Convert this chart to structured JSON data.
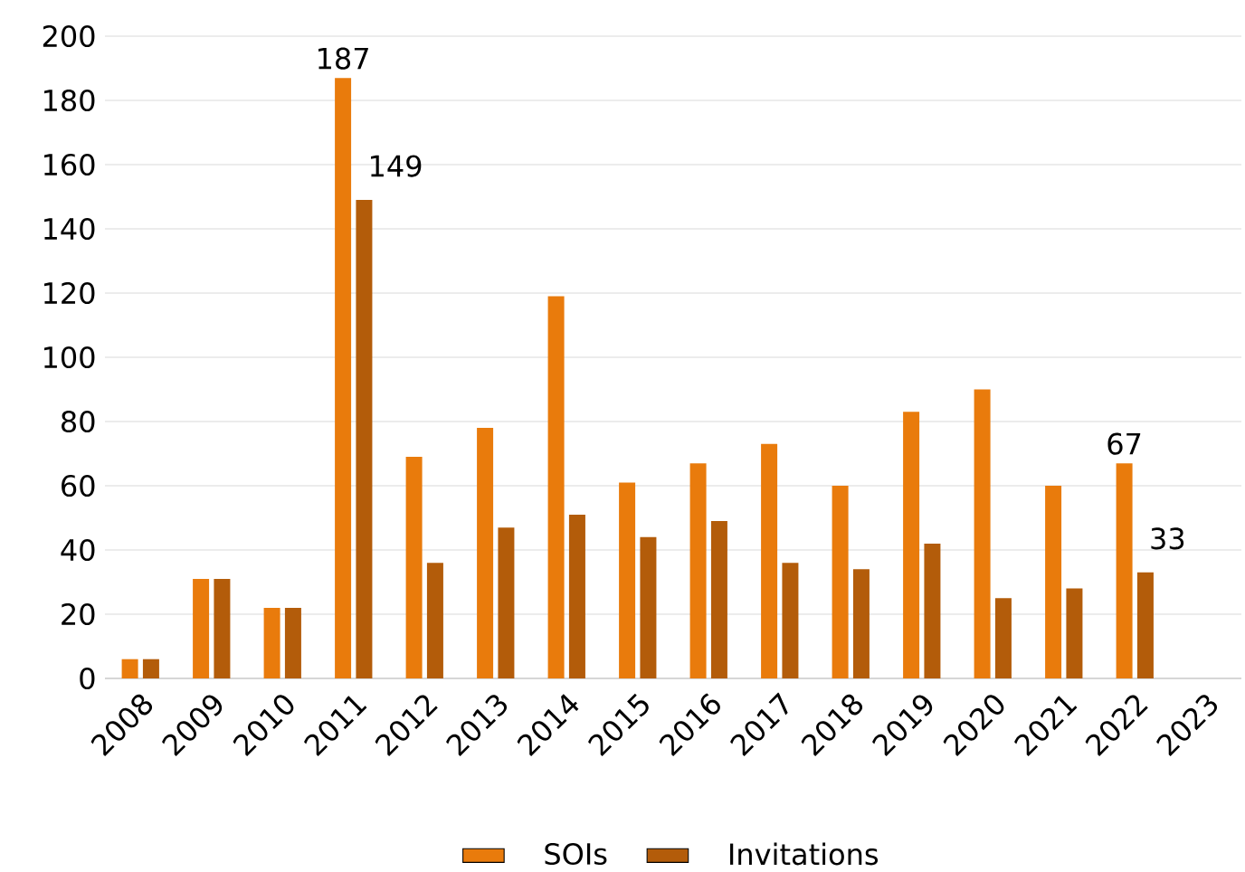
{
  "chart_data": {
    "type": "bar",
    "categories": [
      "2008",
      "2009",
      "2010",
      "2011",
      "2012",
      "2013",
      "2014",
      "2015",
      "2016",
      "2017",
      "2018",
      "2019",
      "2020",
      "2021",
      "2022",
      "2023"
    ],
    "series": [
      {
        "name": "SOIs",
        "color": "#e97b0c",
        "values": [
          6,
          31,
          22,
          187,
          69,
          78,
          119,
          61,
          67,
          73,
          60,
          83,
          90,
          60,
          67,
          null
        ],
        "value_labels": [
          null,
          null,
          null,
          "187",
          null,
          null,
          null,
          null,
          null,
          null,
          null,
          null,
          null,
          null,
          "67",
          null
        ]
      },
      {
        "name": "Invitations",
        "color": "#b35c0a",
        "values": [
          6,
          31,
          22,
          149,
          36,
          47,
          51,
          44,
          49,
          36,
          34,
          42,
          25,
          28,
          33,
          null
        ],
        "value_labels": [
          null,
          null,
          null,
          "149",
          null,
          null,
          null,
          null,
          null,
          null,
          null,
          null,
          null,
          null,
          "33",
          null
        ]
      }
    ],
    "ylim": [
      0,
      200
    ],
    "yticks": [
      0,
      20,
      40,
      60,
      80,
      100,
      120,
      140,
      160,
      180,
      200
    ],
    "grid": "y",
    "legend": "bottom"
  }
}
